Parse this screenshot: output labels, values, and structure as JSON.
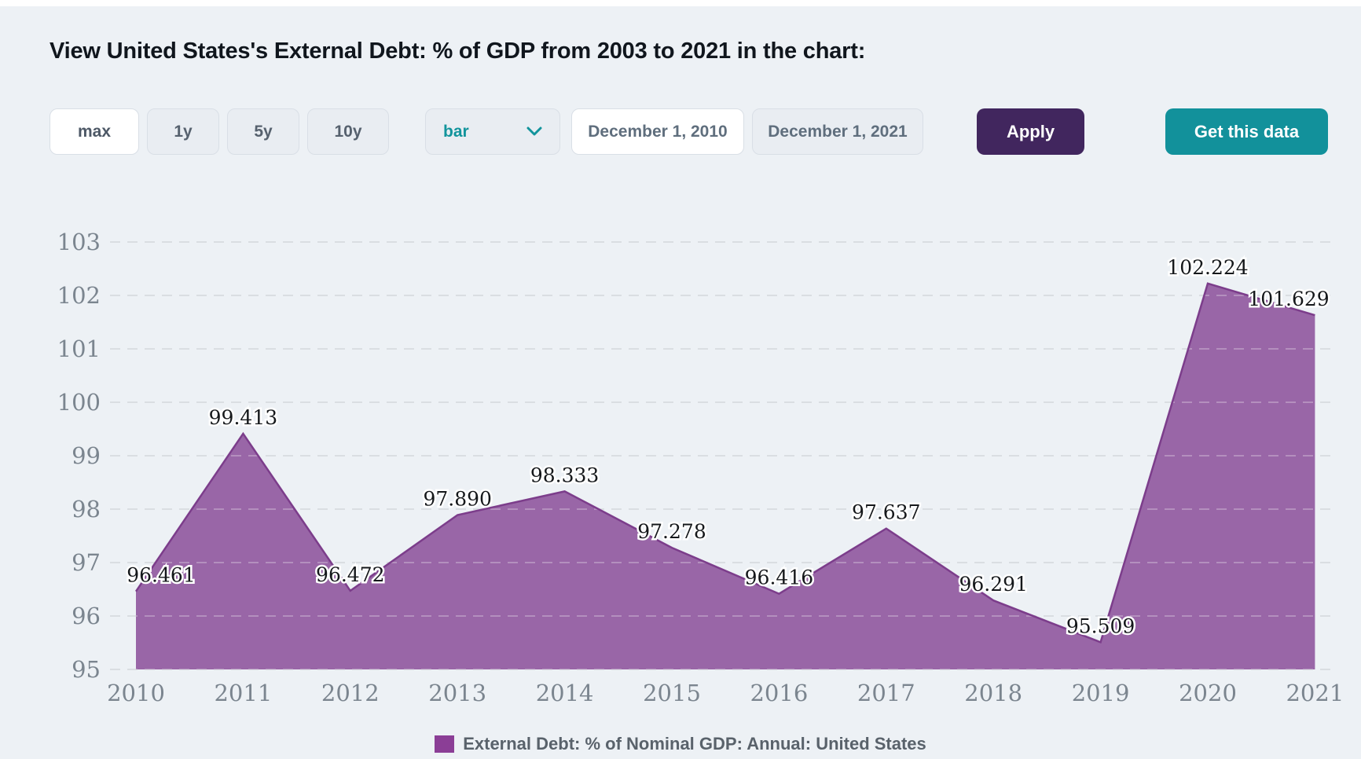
{
  "page": {
    "title": "View United States's External Debt: % of GDP from 2003 to 2021 in the chart:",
    "background_color": "#edf1f5"
  },
  "toolbar": {
    "range_buttons": {
      "max": "max",
      "one_year": "1y",
      "five_year": "5y",
      "ten_year": "10y",
      "active": "max"
    },
    "chart_type_select": {
      "value": "bar"
    },
    "date_from": "December 1, 2010",
    "date_to": "December 1, 2021",
    "apply_label": "Apply",
    "get_data_label": "Get this data",
    "colors": {
      "apply_bg": "#41265e",
      "get_data_bg": "#12919b",
      "select_text": "#12949c"
    }
  },
  "chart_data": {
    "type": "area",
    "categories": [
      "2010",
      "2011",
      "2012",
      "2013",
      "2014",
      "2015",
      "2016",
      "2017",
      "2018",
      "2019",
      "2020",
      "2021"
    ],
    "series": [
      {
        "name": "External Debt: % of Nominal GDP: Annual: United States",
        "values": [
          96.461,
          99.413,
          96.472,
          97.89,
          98.333,
          97.278,
          96.416,
          97.637,
          96.291,
          95.509,
          102.224,
          101.629
        ]
      }
    ],
    "data_labels": [
      "96.461",
      "99.413",
      "96.472",
      "97.890",
      "98.333",
      "97.278",
      "96.416",
      "97.637",
      "96.291",
      "95.509",
      "102.224",
      "101.629"
    ],
    "title": "",
    "xlabel": "",
    "ylabel": "",
    "ylim": [
      95,
      103
    ],
    "yticks": [
      95,
      96,
      97,
      98,
      99,
      100,
      101,
      102,
      103
    ],
    "grid": "horizontal dashed",
    "legend_position": "bottom",
    "area_fill": "#9560a3",
    "line_color": "#7c3d8b",
    "gridline_color": "#ccd1d7",
    "axis_text_color": "#7b858f",
    "data_label_color": "#15181b"
  },
  "legend": {
    "swatch_color": "#8b3e96",
    "label": "External Debt: % of Nominal GDP: Annual: United States"
  }
}
